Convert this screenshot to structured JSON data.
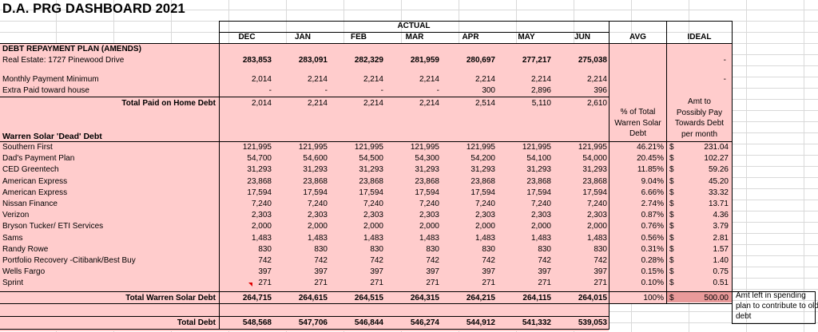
{
  "title": "D.A. PRG DASHBOARD 2021",
  "actual_label": "ACTUAL",
  "months": [
    "DEC",
    "JAN",
    "FEB",
    "MAR",
    "APR",
    "MAY",
    "JUN"
  ],
  "avg_label": "AVG",
  "ideal_label": "IDEAL",
  "section1": {
    "title": "DEBT REPAYMENT PLAN (AMENDS)",
    "rows": [
      {
        "label": "Real Estate: 1727 Pinewood Drive",
        "values": [
          "283,853",
          "283,091",
          "282,329",
          "281,959",
          "280,697",
          "277,217",
          "275,038"
        ],
        "ideal": "-",
        "bold": true
      },
      {
        "label": "Monthly Payment Minimum",
        "values": [
          "2,014",
          "2,214",
          "2,214",
          "2,214",
          "2,214",
          "2,214",
          "2,214"
        ],
        "ideal": "-",
        "bold": false
      },
      {
        "label": "Extra Paid toward house",
        "values": [
          "-",
          "-",
          "-",
          "-",
          "300",
          "2,896",
          "396"
        ],
        "ideal": "",
        "bold": false
      }
    ],
    "total_label": "Total Paid on Home Debt",
    "total_values": [
      "2,014",
      "2,214",
      "2,214",
      "2,214",
      "2,514",
      "5,110",
      "2,610"
    ]
  },
  "avg_heading": [
    "% of Total",
    "Warren Solar",
    "Debt"
  ],
  "ideal_heading": [
    "Amt to",
    "Possibly Pay",
    "Towards Debt",
    "per month"
  ],
  "section2": {
    "title": "Warren Solar 'Dead' Debt",
    "rows": [
      {
        "label": "Southern First",
        "values": [
          "121,995",
          "121,995",
          "121,995",
          "121,995",
          "121,995",
          "121,995",
          "121,995"
        ],
        "avg": "46.21%",
        "ideal": "231.04"
      },
      {
        "label": "Dad's Payment Plan",
        "values": [
          "54,700",
          "54,600",
          "54,500",
          "54,300",
          "54,200",
          "54,100",
          "54,000"
        ],
        "avg": "20.45%",
        "ideal": "102.27"
      },
      {
        "label": "CED Greentech",
        "values": [
          "31,293",
          "31,293",
          "31,293",
          "31,293",
          "31,293",
          "31,293",
          "31,293"
        ],
        "avg": "11.85%",
        "ideal": "59.26"
      },
      {
        "label": "American Express",
        "values": [
          "23,868",
          "23,868",
          "23,868",
          "23,868",
          "23,868",
          "23,868",
          "23,868"
        ],
        "avg": "9.04%",
        "ideal": "45.20"
      },
      {
        "label": "American Express",
        "values": [
          "17,594",
          "17,594",
          "17,594",
          "17,594",
          "17,594",
          "17,594",
          "17,594"
        ],
        "avg": "6.66%",
        "ideal": "33.32"
      },
      {
        "label": "Nissan Finance",
        "values": [
          "7,240",
          "7,240",
          "7,240",
          "7,240",
          "7,240",
          "7,240",
          "7,240"
        ],
        "avg": "2.74%",
        "ideal": "13.71"
      },
      {
        "label": "Verizon",
        "values": [
          "2,303",
          "2,303",
          "2,303",
          "2,303",
          "2,303",
          "2,303",
          "2,303"
        ],
        "avg": "0.87%",
        "ideal": "4.36"
      },
      {
        "label": "Bryson Tucker/ ETI Services",
        "values": [
          "2,000",
          "2,000",
          "2,000",
          "2,000",
          "2,000",
          "2,000",
          "2,000"
        ],
        "avg": "0.76%",
        "ideal": "3.79"
      },
      {
        "label": "Sams",
        "values": [
          "1,483",
          "1,483",
          "1,483",
          "1,483",
          "1,483",
          "1,483",
          "1,483"
        ],
        "avg": "0.56%",
        "ideal": "2.81"
      },
      {
        "label": "Randy Rowe",
        "values": [
          "830",
          "830",
          "830",
          "830",
          "830",
          "830",
          "830"
        ],
        "avg": "0.31%",
        "ideal": "1.57"
      },
      {
        "label": "Portfolio Recovery -Citibank/Best Buy",
        "values": [
          "742",
          "742",
          "742",
          "742",
          "742",
          "742",
          "742"
        ],
        "avg": "0.28%",
        "ideal": "1.40"
      },
      {
        "label": "Wells Fargo",
        "values": [
          "397",
          "397",
          "397",
          "397",
          "397",
          "397",
          "397"
        ],
        "avg": "0.15%",
        "ideal": "0.75"
      },
      {
        "label": "Sprint",
        "values": [
          "271",
          "271",
          "271",
          "271",
          "271",
          "271",
          "271"
        ],
        "avg": "0.10%",
        "ideal": "0.51"
      }
    ],
    "total_label": "Total Warren Solar Debt",
    "total_values": [
      "264,715",
      "264,615",
      "264,515",
      "264,315",
      "264,215",
      "264,115",
      "264,015"
    ],
    "total_avg": "100%",
    "total_ideal": "500.00"
  },
  "dollar_sign": "$",
  "total_debt_label": "Total Debt",
  "total_debt_values": [
    "548,568",
    "547,706",
    "546,844",
    "546,274",
    "544,912",
    "541,332",
    "539,053"
  ],
  "note": "Amt left in spending plan to contribute to old debt",
  "colors": {
    "pink": "#ffcccc",
    "dark_pink": "#e99a9a",
    "grid": "#d9d9d9",
    "comment_marker": "#e00000"
  }
}
